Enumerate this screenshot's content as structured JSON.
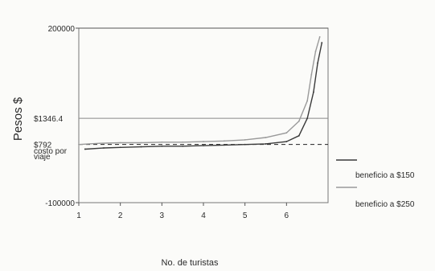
{
  "chart_data": {
    "type": "line",
    "xlabel": "No. de turistas",
    "ylabel": "Pesos $",
    "xlim": [
      1,
      7
    ],
    "ylim": [
      -100000,
      200000
    ],
    "x_ticks": [
      1,
      2,
      3,
      4,
      5,
      6
    ],
    "y_tick_labels": [
      {
        "value": 200000,
        "label": "200000"
      },
      {
        "value": -100000,
        "label": "-100000"
      }
    ],
    "annotations": [
      {
        "label": "$1346.4",
        "value": 45000
      },
      {
        "label": "$792",
        "value": 0
      },
      {
        "label": "costo por",
        "value": -10000
      },
      {
        "label": "viaje",
        "value": -20000
      }
    ],
    "reference_lines": [
      {
        "name": "$1346.4",
        "y": 45000,
        "style": "solid"
      },
      {
        "name": "$792",
        "y": 0,
        "style": "dashed"
      }
    ],
    "legend": {
      "placement": "right",
      "entries": [
        "beneficio a $150",
        "beneficio a $250"
      ]
    },
    "series": [
      {
        "name": "beneficio a $150",
        "color": "#3a3a3a",
        "x": [
          1.15,
          1.6,
          2.0,
          2.5,
          3.0,
          3.5,
          4.0,
          4.5,
          5.0,
          5.5,
          6.0,
          6.3,
          6.5,
          6.65,
          6.75,
          6.85
        ],
        "y": [
          -8000,
          -6000,
          -5000,
          -4000,
          -3000,
          -3000,
          -2000,
          -1000,
          0,
          1000,
          5000,
          15000,
          45000,
          90000,
          140000,
          175000
        ]
      },
      {
        "name": "beneficio a $250",
        "color": "#9a9a9a",
        "x": [
          1.0,
          1.5,
          2.0,
          2.5,
          3.0,
          3.5,
          4.0,
          4.5,
          5.0,
          5.5,
          6.0,
          6.3,
          6.5,
          6.6,
          6.7,
          6.8
        ],
        "y": [
          0,
          2000,
          3000,
          3000,
          4000,
          4000,
          5000,
          6000,
          8000,
          12000,
          20000,
          40000,
          75000,
          120000,
          160000,
          185000
        ]
      }
    ]
  }
}
